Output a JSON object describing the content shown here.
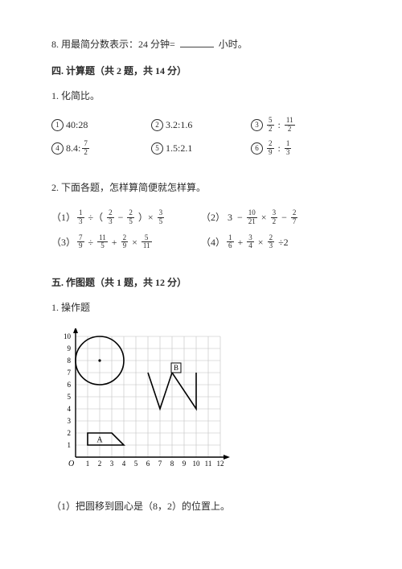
{
  "q8": {
    "prefix": "8. 用最简分数表示：24 分钟=",
    "suffix": "小时。"
  },
  "sec4": {
    "heading": "四. 计算题（共 2 题，共 14 分）"
  },
  "p1": {
    "stem": "1. 化简比。"
  },
  "ratios": {
    "r1": {
      "num": "1",
      "text": "40:28"
    },
    "r2": {
      "num": "2",
      "text": "3.2:1.6"
    },
    "r3": {
      "num": "3",
      "left_n": "5",
      "left_d": "2",
      "right_n": "11",
      "right_d": "2"
    },
    "r4": {
      "num": "4",
      "left_text": "8.4:",
      "right_n": "7",
      "right_d": "2"
    },
    "r5": {
      "num": "5",
      "text": "1.5:2.1"
    },
    "r6": {
      "num": "6",
      "left_n": "2",
      "left_d": "9",
      "right_n": "1",
      "right_d": "3"
    }
  },
  "p2": {
    "stem": "2. 下面各题，怎样算简便就怎样算。"
  },
  "calc": {
    "c1": {
      "label": "（1）",
      "a_n": "1",
      "a_d": "3",
      "b_n": "2",
      "b_d": "3",
      "c_n": "2",
      "c_d": "5",
      "d_n": "3",
      "d_d": "5"
    },
    "c2": {
      "label": "（2）",
      "a": "3",
      "b_n": "10",
      "b_d": "21",
      "c_n": "3",
      "c_d": "2",
      "d_n": "2",
      "d_d": "7"
    },
    "c3": {
      "label": "（3）",
      "a_n": "7",
      "a_d": "9",
      "b_n": "11",
      "b_d": "5",
      "c_n": "2",
      "c_d": "9",
      "d_n": "5",
      "d_d": "11"
    },
    "c4": {
      "label": "（4）",
      "a_n": "1",
      "a_d": "6",
      "b_n": "3",
      "b_d": "4",
      "c_n": "2",
      "c_d": "3",
      "tail": "÷2"
    }
  },
  "sec5": {
    "heading": "五. 作图题（共 1 题，共 12 分）"
  },
  "op_stem": "1. 操作题",
  "diagram": {
    "xticks": [
      "1",
      "2",
      "3",
      "4",
      "5",
      "6",
      "7",
      "8",
      "9",
      "10",
      "11",
      "12"
    ],
    "yticks": [
      "1",
      "2",
      "3",
      "4",
      "5",
      "6",
      "7",
      "8",
      "9",
      "10"
    ],
    "origin_label": "O",
    "labelA": "A",
    "labelB": "B",
    "grid_color": "#c0c0c0",
    "axis_color": "#000000",
    "stroke_width": 1.6
  },
  "sub1": "（1）把圆移到圆心是（8，2）的位置上。"
}
